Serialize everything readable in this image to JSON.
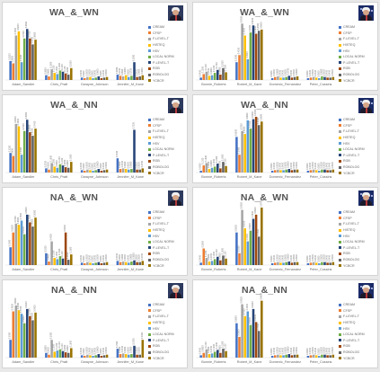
{
  "series_names": [
    "CREAM",
    "CFSP",
    "F-LEVEL-T",
    "HISTEQ",
    "HSV",
    "LOCAL NORM",
    "P-LEVEL-T",
    "RGB",
    "ROBOLOG",
    "YCBCR"
  ],
  "series_colors": [
    "#4472c4",
    "#ed7d31",
    "#a5a5a5",
    "#ffc000",
    "#5b9bd5",
    "#70ad47",
    "#264478",
    "#9e480e",
    "#636363",
    "#997300"
  ],
  "chart_data": [
    {
      "type": "bar",
      "title": "WA_&_WN",
      "ylim": [
        0,
        1
      ],
      "categories": [
        "Adam_Sandler",
        "Chris_Pratt",
        "Dwayne_Johnson",
        "Jennifer_M_Kane"
      ],
      "series": [
        {
          "name": "CREAM",
          "values": [
            0.32,
            0.08,
            0.04,
            0.09
          ]
        },
        {
          "name": "CFSP",
          "values": [
            0.28,
            0.06,
            0.03,
            0.07
          ]
        },
        {
          "name": "F-LEVEL-T",
          "values": [
            0.75,
            0.18,
            0.05,
            0.06
          ]
        },
        {
          "name": "HISTEQ",
          "values": [
            0.82,
            0.12,
            0.05,
            0.08
          ]
        },
        {
          "name": "HSV",
          "values": [
            0.3,
            0.1,
            0.03,
            0.05
          ]
        },
        {
          "name": "LOCAL NORM",
          "values": [
            0.7,
            0.16,
            0.04,
            0.07
          ]
        },
        {
          "name": "P-LEVEL-T",
          "values": [
            0.86,
            0.14,
            0.06,
            0.3
          ]
        },
        {
          "name": "RGB",
          "values": [
            0.7,
            0.11,
            0.03,
            0.05
          ]
        },
        {
          "name": "ROBOLOG",
          "values": [
            0.6,
            0.09,
            0.04,
            0.06
          ]
        },
        {
          "name": "YCBCR",
          "values": [
            0.68,
            0.2,
            0.05,
            0.08
          ]
        }
      ]
    },
    {
      "type": "bar",
      "title": "WA_&_WN",
      "ylim": [
        0,
        1
      ],
      "categories": [
        "Bonnie_Roberts",
        "Robert_M_Kane",
        "Domenic_Fernandez",
        "Peter_Cossins"
      ],
      "series": [
        {
          "name": "CREAM",
          "values": [
            0.04,
            0.3,
            0.03,
            0.03
          ]
        },
        {
          "name": "CFSP",
          "values": [
            0.1,
            0.42,
            0.05,
            0.04
          ]
        },
        {
          "name": "F-LEVEL-T",
          "values": [
            0.14,
            0.95,
            0.06,
            0.05
          ]
        },
        {
          "name": "HISTEQ",
          "values": [
            0.07,
            0.75,
            0.04,
            0.04
          ]
        },
        {
          "name": "HSV",
          "values": [
            0.08,
            0.35,
            0.04,
            0.03
          ]
        },
        {
          "name": "LOCAL NORM",
          "values": [
            0.12,
            0.8,
            0.05,
            0.06
          ]
        },
        {
          "name": "P-LEVEL-T",
          "values": [
            0.17,
            0.92,
            0.07,
            0.05
          ]
        },
        {
          "name": "RGB",
          "values": [
            0.09,
            0.78,
            0.04,
            0.04
          ]
        },
        {
          "name": "ROBOLOG",
          "values": [
            0.2,
            0.83,
            0.05,
            0.04
          ]
        },
        {
          "name": "YCBCR",
          "values": [
            0.13,
            0.85,
            0.06,
            0.05
          ]
        }
      ]
    },
    {
      "type": "bar",
      "title": "WA_&_NN",
      "ylim": [
        0,
        1
      ],
      "categories": [
        "Adam_Sandler",
        "Chris_Pratt",
        "Dwayne_Johnson",
        "Jennifer_M_Kane"
      ],
      "series": [
        {
          "name": "CREAM",
          "values": [
            0.33,
            0.07,
            0.04,
            0.24
          ]
        },
        {
          "name": "CFSP",
          "values": [
            0.28,
            0.05,
            0.03,
            0.06
          ]
        },
        {
          "name": "F-LEVEL-T",
          "values": [
            0.82,
            0.16,
            0.05,
            0.07
          ]
        },
        {
          "name": "HISTEQ",
          "values": [
            0.78,
            0.1,
            0.04,
            0.06
          ]
        },
        {
          "name": "HSV",
          "values": [
            0.3,
            0.08,
            0.03,
            0.05
          ]
        },
        {
          "name": "LOCAL NORM",
          "values": [
            0.7,
            0.14,
            0.04,
            0.06
          ]
        },
        {
          "name": "P-LEVEL-T",
          "values": [
            0.89,
            0.12,
            0.06,
            0.72
          ]
        },
        {
          "name": "RGB",
          "values": [
            0.68,
            0.09,
            0.03,
            0.05
          ]
        },
        {
          "name": "ROBOLOG",
          "values": [
            0.62,
            0.08,
            0.04,
            0.05
          ]
        },
        {
          "name": "YCBCR",
          "values": [
            0.74,
            0.18,
            0.05,
            0.07
          ]
        }
      ]
    },
    {
      "type": "bar",
      "title": "WA_&_NN",
      "ylim": [
        0,
        1
      ],
      "categories": [
        "Bonnie_Roberts",
        "Robert_M_Kane",
        "Domenic_Fernandez",
        "Peter_Cossins"
      ],
      "series": [
        {
          "name": "CREAM",
          "values": [
            0.03,
            0.6,
            0.03,
            0.03
          ]
        },
        {
          "name": "CFSP",
          "values": [
            0.12,
            0.3,
            0.04,
            0.04
          ]
        },
        {
          "name": "F-LEVEL-T",
          "values": [
            0.16,
            0.7,
            0.05,
            0.05
          ]
        },
        {
          "name": "HISTEQ",
          "values": [
            0.06,
            0.65,
            0.04,
            0.04
          ]
        },
        {
          "name": "HSV",
          "values": [
            0.08,
            0.88,
            0.04,
            0.03
          ]
        },
        {
          "name": "LOCAL NORM",
          "values": [
            0.1,
            0.74,
            0.05,
            0.05
          ]
        },
        {
          "name": "P-LEVEL-T",
          "values": [
            0.15,
            0.9,
            0.06,
            0.05
          ]
        },
        {
          "name": "RGB",
          "values": [
            0.07,
            0.94,
            0.04,
            0.04
          ]
        },
        {
          "name": "ROBOLOG",
          "values": [
            0.18,
            0.8,
            0.05,
            0.04
          ]
        },
        {
          "name": "YCBCR",
          "values": [
            0.11,
            0.86,
            0.05,
            0.05
          ]
        }
      ]
    },
    {
      "type": "bar",
      "title": "NA_&_WN",
      "ylim": [
        0,
        1
      ],
      "categories": [
        "Adam_Sandler",
        "Chris_Pratt",
        "Dwayne_Johnson",
        "Jennifer_M_Kane"
      ],
      "series": [
        {
          "name": "CREAM",
          "values": [
            0.3,
            0.2,
            0.04,
            0.07
          ]
        },
        {
          "name": "CFSP",
          "values": [
            0.55,
            0.06,
            0.03,
            0.05
          ]
        },
        {
          "name": "F-LEVEL-T",
          "values": [
            0.7,
            0.4,
            0.05,
            0.06
          ]
        },
        {
          "name": "HISTEQ",
          "values": [
            0.68,
            0.12,
            0.04,
            0.05
          ]
        },
        {
          "name": "HSV",
          "values": [
            0.75,
            0.1,
            0.03,
            0.04
          ]
        },
        {
          "name": "LOCAL NORM",
          "values": [
            0.52,
            0.15,
            0.04,
            0.06
          ]
        },
        {
          "name": "P-LEVEL-T",
          "values": [
            0.85,
            0.11,
            0.05,
            0.08
          ]
        },
        {
          "name": "RGB",
          "values": [
            0.72,
            0.55,
            0.03,
            0.05
          ]
        },
        {
          "name": "ROBOLOG",
          "values": [
            0.65,
            0.09,
            0.04,
            0.05
          ]
        },
        {
          "name": "YCBCR",
          "values": [
            0.8,
            0.18,
            0.05,
            0.07
          ]
        }
      ]
    },
    {
      "type": "bar",
      "title": "NA_&_WN",
      "ylim": [
        0,
        1
      ],
      "categories": [
        "Bonnie_Roberts",
        "Robert_M_Kane",
        "Domenic_Fernandez",
        "Peter_Cossins"
      ],
      "series": [
        {
          "name": "CREAM",
          "values": [
            0.04,
            0.55,
            0.03,
            0.03
          ]
        },
        {
          "name": "CFSP",
          "values": [
            0.28,
            0.2,
            0.04,
            0.04
          ]
        },
        {
          "name": "F-LEVEL-T",
          "values": [
            0.12,
            0.93,
            0.05,
            0.05
          ]
        },
        {
          "name": "HISTEQ",
          "values": [
            0.06,
            0.62,
            0.04,
            0.04
          ]
        },
        {
          "name": "HSV",
          "values": [
            0.07,
            0.4,
            0.04,
            0.03
          ]
        },
        {
          "name": "LOCAL NORM",
          "values": [
            0.1,
            0.58,
            0.05,
            0.05
          ]
        },
        {
          "name": "P-LEVEL-T",
          "values": [
            0.14,
            0.78,
            0.06,
            0.05
          ]
        },
        {
          "name": "RGB",
          "values": [
            0.08,
            0.85,
            0.04,
            0.04
          ]
        },
        {
          "name": "ROBOLOG",
          "values": [
            0.16,
            0.48,
            0.05,
            0.04
          ]
        },
        {
          "name": "YCBCR",
          "values": [
            0.11,
            0.97,
            0.05,
            0.05
          ]
        }
      ]
    },
    {
      "type": "bar",
      "title": "NA_&_NN",
      "ylim": [
        0,
        1
      ],
      "categories": [
        "Adam_Sandler",
        "Chris_Pratt",
        "Dwayne_Johnson",
        "Jennifer_M_Kane"
      ],
      "series": [
        {
          "name": "CREAM",
          "values": [
            0.3,
            0.08,
            0.04,
            0.15
          ]
        },
        {
          "name": "CFSP",
          "values": [
            0.78,
            0.05,
            0.03,
            0.06
          ]
        },
        {
          "name": "F-LEVEL-T",
          "values": [
            0.88,
            0.3,
            0.05,
            0.07
          ]
        },
        {
          "name": "HISTEQ",
          "values": [
            0.8,
            0.1,
            0.04,
            0.06
          ]
        },
        {
          "name": "HSV",
          "values": [
            0.74,
            0.12,
            0.03,
            0.05
          ]
        },
        {
          "name": "LOCAL NORM",
          "values": [
            0.58,
            0.14,
            0.04,
            0.06
          ]
        },
        {
          "name": "P-LEVEL-T",
          "values": [
            0.82,
            0.11,
            0.06,
            0.2
          ]
        },
        {
          "name": "RGB",
          "values": [
            0.7,
            0.09,
            0.03,
            0.05
          ]
        },
        {
          "name": "ROBOLOG",
          "values": [
            0.63,
            0.08,
            0.04,
            0.05
          ]
        },
        {
          "name": "YCBCR",
          "values": [
            0.76,
            0.16,
            0.05,
            0.3
          ]
        }
      ]
    },
    {
      "type": "bar",
      "title": "NA_&_NN",
      "ylim": [
        0,
        1
      ],
      "categories": [
        "Bonnie_Roberts",
        "Robert_M_Kane",
        "Domenic_Fernandez",
        "Peter_Cossins"
      ],
      "series": [
        {
          "name": "CREAM",
          "values": [
            0.04,
            0.58,
            0.03,
            0.03
          ]
        },
        {
          "name": "CFSP",
          "values": [
            0.08,
            0.35,
            0.04,
            0.04
          ]
        },
        {
          "name": "F-LEVEL-T",
          "values": [
            0.14,
            0.9,
            0.05,
            0.05
          ]
        },
        {
          "name": "HISTEQ",
          "values": [
            0.06,
            0.7,
            0.04,
            0.04
          ]
        },
        {
          "name": "HSV",
          "values": [
            0.07,
            0.78,
            0.04,
            0.03
          ]
        },
        {
          "name": "LOCAL NORM",
          "values": [
            0.1,
            0.55,
            0.05,
            0.05
          ]
        },
        {
          "name": "P-LEVEL-T",
          "values": [
            0.13,
            0.82,
            0.06,
            0.05
          ]
        },
        {
          "name": "RGB",
          "values": [
            0.08,
            0.6,
            0.04,
            0.04
          ]
        },
        {
          "name": "ROBOLOG",
          "values": [
            0.15,
            0.45,
            0.05,
            0.04
          ]
        },
        {
          "name": "YCBCR",
          "values": [
            0.11,
            0.96,
            0.05,
            0.05
          ]
        }
      ]
    }
  ]
}
